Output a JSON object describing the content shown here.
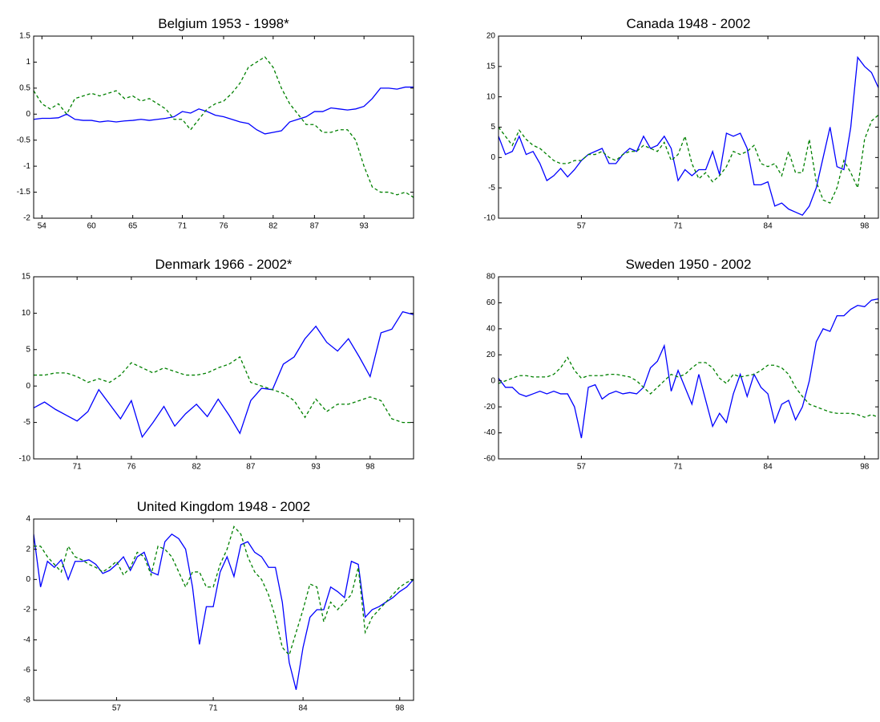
{
  "chart_data": [
    {
      "type": "line",
      "title": "Belgium 1953 - 1998*",
      "x": [
        1953,
        1954,
        1955,
        1956,
        1957,
        1958,
        1959,
        1960,
        1961,
        1962,
        1963,
        1964,
        1965,
        1966,
        1967,
        1968,
        1969,
        1970,
        1971,
        1972,
        1973,
        1974,
        1975,
        1976,
        1977,
        1978,
        1979,
        1980,
        1981,
        1982,
        1983,
        1984,
        1985,
        1986,
        1987,
        1988,
        1989,
        1990,
        1991,
        1992,
        1993,
        1994,
        1995,
        1996,
        1997,
        1998,
        1999
      ],
      "series": [
        {
          "color": "#0000ff",
          "line_style": "solid",
          "values": [
            -0.1,
            -0.08,
            -0.08,
            -0.07,
            0,
            -0.1,
            -0.12,
            -0.12,
            -0.15,
            -0.13,
            -0.15,
            -0.13,
            -0.12,
            -0.1,
            -0.12,
            -0.1,
            -0.08,
            -0.05,
            0.05,
            0.02,
            0.1,
            0.05,
            -0.02,
            -0.05,
            -0.1,
            -0.15,
            -0.18,
            -0.3,
            -0.38,
            -0.35,
            -0.32,
            -0.15,
            -0.1,
            -0.05,
            0.05,
            0.05,
            0.12,
            0.1,
            0.08,
            0.1,
            0.15,
            0.3,
            0.5,
            0.5,
            0.48,
            0.52,
            0.52
          ]
        },
        {
          "color": "#008000",
          "line_style": "dashed",
          "values": [
            0.45,
            0.2,
            0.1,
            0.2,
            0,
            0.3,
            0.35,
            0.4,
            0.35,
            0.4,
            0.45,
            0.3,
            0.35,
            0.25,
            0.3,
            0.2,
            0.1,
            -0.1,
            -0.1,
            -0.3,
            -0.1,
            0.1,
            0.2,
            0.25,
            0.4,
            0.6,
            0.9,
            1.0,
            1.1,
            0.9,
            0.5,
            0.2,
            0,
            -0.2,
            -0.2,
            -0.35,
            -0.35,
            -0.3,
            -0.3,
            -0.5,
            -1,
            -1.4,
            -1.5,
            -1.5,
            -1.55,
            -1.5,
            -1.6
          ]
        }
      ],
      "xlim": [
        1953,
        1999
      ],
      "xticks": [
        {
          "value": 1954,
          "label": "54"
        },
        {
          "value": 1960,
          "label": "60"
        },
        {
          "value": 1965,
          "label": "65"
        },
        {
          "value": 1971,
          "label": "71"
        },
        {
          "value": 1976,
          "label": "76"
        },
        {
          "value": 1982,
          "label": "82"
        },
        {
          "value": 1987,
          "label": "87"
        },
        {
          "value": 1993,
          "label": "93"
        }
      ],
      "ylim": [
        -2,
        1.5
      ],
      "yticks": [
        -2,
        -1.5,
        -1,
        -0.5,
        0,
        0.5,
        1,
        1.5
      ]
    },
    {
      "type": "line",
      "title": "Canada 1948 - 2002",
      "x": [
        1945,
        1946,
        1947,
        1948,
        1949,
        1950,
        1951,
        1952,
        1953,
        1954,
        1955,
        1956,
        1957,
        1958,
        1959,
        1960,
        1961,
        1962,
        1963,
        1964,
        1965,
        1966,
        1967,
        1968,
        1969,
        1970,
        1971,
        1972,
        1973,
        1974,
        1975,
        1976,
        1977,
        1978,
        1979,
        1980,
        1981,
        1982,
        1983,
        1984,
        1985,
        1986,
        1987,
        1988,
        1989,
        1990,
        1991,
        1992,
        1993,
        1994,
        1995,
        1996,
        1997,
        1998,
        1999,
        2000
      ],
      "series": [
        {
          "color": "#0000ff",
          "line_style": "solid",
          "values": [
            3.5,
            0.5,
            1,
            3.5,
            0.5,
            1,
            -1,
            -3.8,
            -3,
            -1.8,
            -3.2,
            -2,
            -0.5,
            0.5,
            1,
            1.5,
            -1,
            -1,
            0.5,
            1.5,
            1,
            3.5,
            1.5,
            2,
            3.5,
            1.5,
            -3.8,
            -2,
            -3,
            -2,
            -2,
            1,
            -2.8,
            4,
            3.5,
            4,
            1.5,
            -4.5,
            -4.5,
            -4,
            -8,
            -7.5,
            -8.5,
            -9,
            -9.5,
            -8,
            -5,
            0,
            5,
            -1.5,
            -2,
            5,
            16.5,
            15,
            14,
            11.5
          ]
        },
        {
          "color": "#008000",
          "line_style": "dashed",
          "values": [
            5,
            3.5,
            2,
            4.5,
            3,
            2,
            1.5,
            0.5,
            -0.5,
            -1,
            -1,
            -0.5,
            -0.5,
            0.5,
            0.5,
            1,
            0,
            -0.5,
            0.5,
            1,
            1,
            2,
            1.5,
            1,
            2.5,
            -0.5,
            0.5,
            3.5,
            -1,
            -3.5,
            -2.5,
            -4,
            -3,
            -1.5,
            1,
            0.5,
            1,
            2,
            -1,
            -1.5,
            -1,
            -3,
            1,
            -2.5,
            -2.5,
            3,
            -4,
            -7,
            -7.5,
            -5,
            -0.5,
            -2.5,
            -5,
            3,
            6,
            7
          ]
        }
      ],
      "xlim": [
        1945,
        2000
      ],
      "xticks": [
        {
          "value": 1957,
          "label": "57"
        },
        {
          "value": 1971,
          "label": "71"
        },
        {
          "value": 1984,
          "label": "84"
        },
        {
          "value": 1998,
          "label": "98"
        }
      ],
      "ylim": [
        -10,
        20
      ],
      "yticks": [
        -10,
        -5,
        0,
        5,
        10,
        15,
        20
      ]
    },
    {
      "type": "line",
      "title": "Denmark 1966 - 2002*",
      "x": [
        1967,
        1968,
        1969,
        1970,
        1971,
        1972,
        1973,
        1974,
        1975,
        1976,
        1977,
        1978,
        1979,
        1980,
        1981,
        1982,
        1983,
        1984,
        1985,
        1986,
        1987,
        1988,
        1989,
        1990,
        1991,
        1992,
        1993,
        1994,
        1995,
        1996,
        1997,
        1998,
        1999,
        2000,
        2001,
        2002
      ],
      "series": [
        {
          "color": "#0000ff",
          "line_style": "solid",
          "values": [
            -3,
            -2.2,
            -3.2,
            -4,
            -4.8,
            -3.5,
            -0.5,
            -2.5,
            -4.5,
            -2,
            -7,
            -5,
            -2.8,
            -5.5,
            -3.8,
            -2.5,
            -4.2,
            -1.8,
            -4,
            -6.5,
            -2,
            -0.3,
            -0.5,
            3,
            4,
            6.5,
            8.2,
            6,
            4.8,
            6.5,
            4,
            1.3,
            7.3,
            7.8,
            10.2,
            9.8
          ]
        },
        {
          "color": "#008000",
          "line_style": "dashed",
          "values": [
            1.5,
            1.5,
            1.8,
            1.8,
            1.3,
            0.5,
            1,
            0.5,
            1.5,
            3.2,
            2.5,
            1.8,
            2.5,
            2,
            1.5,
            1.5,
            1.8,
            2.5,
            3,
            4,
            0.5,
            0,
            -0.5,
            -1,
            -2,
            -4.3,
            -1.8,
            -3.5,
            -2.5,
            -2.5,
            -2,
            -1.5,
            -2,
            -4.5,
            -5,
            -5
          ]
        }
      ],
      "xlim": [
        1967,
        2002
      ],
      "xticks": [
        {
          "value": 1971,
          "label": "71"
        },
        {
          "value": 1976,
          "label": "76"
        },
        {
          "value": 1982,
          "label": "82"
        },
        {
          "value": 1987,
          "label": "87"
        },
        {
          "value": 1993,
          "label": "93"
        },
        {
          "value": 1998,
          "label": "98"
        }
      ],
      "ylim": [
        -10,
        15
      ],
      "yticks": [
        -10,
        -5,
        0,
        5,
        10,
        15
      ]
    },
    {
      "type": "line",
      "title": "Sweden 1950 - 2002",
      "x": [
        1945,
        1946,
        1947,
        1948,
        1949,
        1950,
        1951,
        1952,
        1953,
        1954,
        1955,
        1956,
        1957,
        1958,
        1959,
        1960,
        1961,
        1962,
        1963,
        1964,
        1965,
        1966,
        1967,
        1968,
        1969,
        1970,
        1971,
        1972,
        1973,
        1974,
        1975,
        1976,
        1977,
        1978,
        1979,
        1980,
        1981,
        1982,
        1983,
        1984,
        1985,
        1986,
        1987,
        1988,
        1989,
        1990,
        1991,
        1992,
        1993,
        1994,
        1995,
        1996,
        1997,
        1998,
        1999,
        2000
      ],
      "series": [
        {
          "color": "#0000ff",
          "line_style": "solid",
          "values": [
            2,
            -5,
            -5,
            -10,
            -12,
            -10,
            -8,
            -10,
            -8,
            -10,
            -10,
            -20,
            -44,
            -5,
            -3,
            -14,
            -10,
            -8,
            -10,
            -9,
            -10,
            -5,
            10,
            15,
            27,
            -8,
            8,
            -5,
            -18,
            5,
            -15,
            -35,
            -25,
            -32,
            -10,
            5,
            -12,
            5,
            -5,
            -10,
            -32,
            -18,
            -15,
            -30,
            -20,
            0,
            30,
            40,
            38,
            50,
            50,
            55,
            58,
            57,
            62,
            63
          ]
        },
        {
          "color": "#008000",
          "line_style": "dashed",
          "values": [
            -2,
            0,
            2,
            4,
            4,
            3,
            3,
            3,
            5,
            10,
            18,
            8,
            2,
            4,
            4,
            4,
            5,
            5,
            4,
            3,
            0,
            -5,
            -10,
            -5,
            0,
            5,
            3,
            5,
            10,
            14,
            14,
            10,
            2,
            -2,
            5,
            3,
            4,
            5,
            8,
            12,
            12,
            10,
            5,
            -5,
            -12,
            -18,
            -20,
            -22,
            -24,
            -25,
            -25,
            -25,
            -26,
            -28,
            -26,
            -28
          ]
        }
      ],
      "xlim": [
        1945,
        2000
      ],
      "xticks": [
        {
          "value": 1957,
          "label": "57"
        },
        {
          "value": 1971,
          "label": "71"
        },
        {
          "value": 1984,
          "label": "84"
        },
        {
          "value": 1998,
          "label": "98"
        }
      ],
      "ylim": [
        -60,
        80
      ],
      "yticks": [
        -60,
        -40,
        -20,
        0,
        20,
        40,
        60,
        80
      ]
    },
    {
      "type": "line",
      "title": "United Kingdom 1948 - 2002",
      "x": [
        1945,
        1946,
        1947,
        1948,
        1949,
        1950,
        1951,
        1952,
        1953,
        1954,
        1955,
        1956,
        1957,
        1958,
        1959,
        1960,
        1961,
        1962,
        1963,
        1964,
        1965,
        1966,
        1967,
        1968,
        1969,
        1970,
        1971,
        1972,
        1973,
        1974,
        1975,
        1976,
        1977,
        1978,
        1979,
        1980,
        1981,
        1982,
        1983,
        1984,
        1985,
        1986,
        1987,
        1988,
        1989,
        1990,
        1991,
        1992,
        1993,
        1994,
        1995,
        1996,
        1997,
        1998,
        1999,
        2000
      ],
      "series": [
        {
          "color": "#0000ff",
          "line_style": "solid",
          "values": [
            3,
            -0.5,
            1.2,
            0.8,
            1.3,
            0,
            1.2,
            1.2,
            1.3,
            1,
            0.4,
            0.6,
            1,
            1.5,
            0.6,
            1.5,
            1.8,
            0.5,
            0.3,
            2.5,
            3,
            2.7,
            2,
            -0.5,
            -4.3,
            -1.8,
            -1.8,
            0.5,
            1.5,
            0.2,
            2.3,
            2.5,
            1.8,
            1.5,
            0.8,
            0.8,
            -1.5,
            -5.5,
            -7.3,
            -4.5,
            -2.5,
            -2,
            -2,
            -0.5,
            -0.8,
            -1.2,
            1.2,
            1,
            -2.5,
            -2,
            -1.8,
            -1.5,
            -1.2,
            -0.8,
            -0.5,
            0
          ]
        },
        {
          "color": "#008000",
          "line_style": "dashed",
          "values": [
            2.2,
            2.2,
            1.5,
            1,
            0.5,
            2.2,
            1.5,
            1.3,
            1,
            0.8,
            0.5,
            0.8,
            1.2,
            0.3,
            0.8,
            1.8,
            1.5,
            0.3,
            2.2,
            2,
            1.5,
            0.5,
            -0.5,
            0.5,
            0.5,
            -0.5,
            -0.5,
            1,
            2,
            3.5,
            3,
            1.5,
            0.5,
            0,
            -1,
            -2.5,
            -4.5,
            -5,
            -3.5,
            -2,
            -0.3,
            -0.5,
            -2.8,
            -1.5,
            -2,
            -1.5,
            -1,
            0.8,
            -3.5,
            -2.5,
            -2,
            -1.5,
            -1,
            -0.5,
            -0.2,
            0
          ]
        }
      ],
      "xlim": [
        1945,
        2000
      ],
      "xticks": [
        {
          "value": 1957,
          "label": "57"
        },
        {
          "value": 1971,
          "label": "71"
        },
        {
          "value": 1984,
          "label": "84"
        },
        {
          "value": 1998,
          "label": "98"
        }
      ],
      "ylim": [
        -8,
        4
      ],
      "yticks": [
        -8,
        -6,
        -4,
        -2,
        0,
        2,
        4
      ]
    }
  ]
}
